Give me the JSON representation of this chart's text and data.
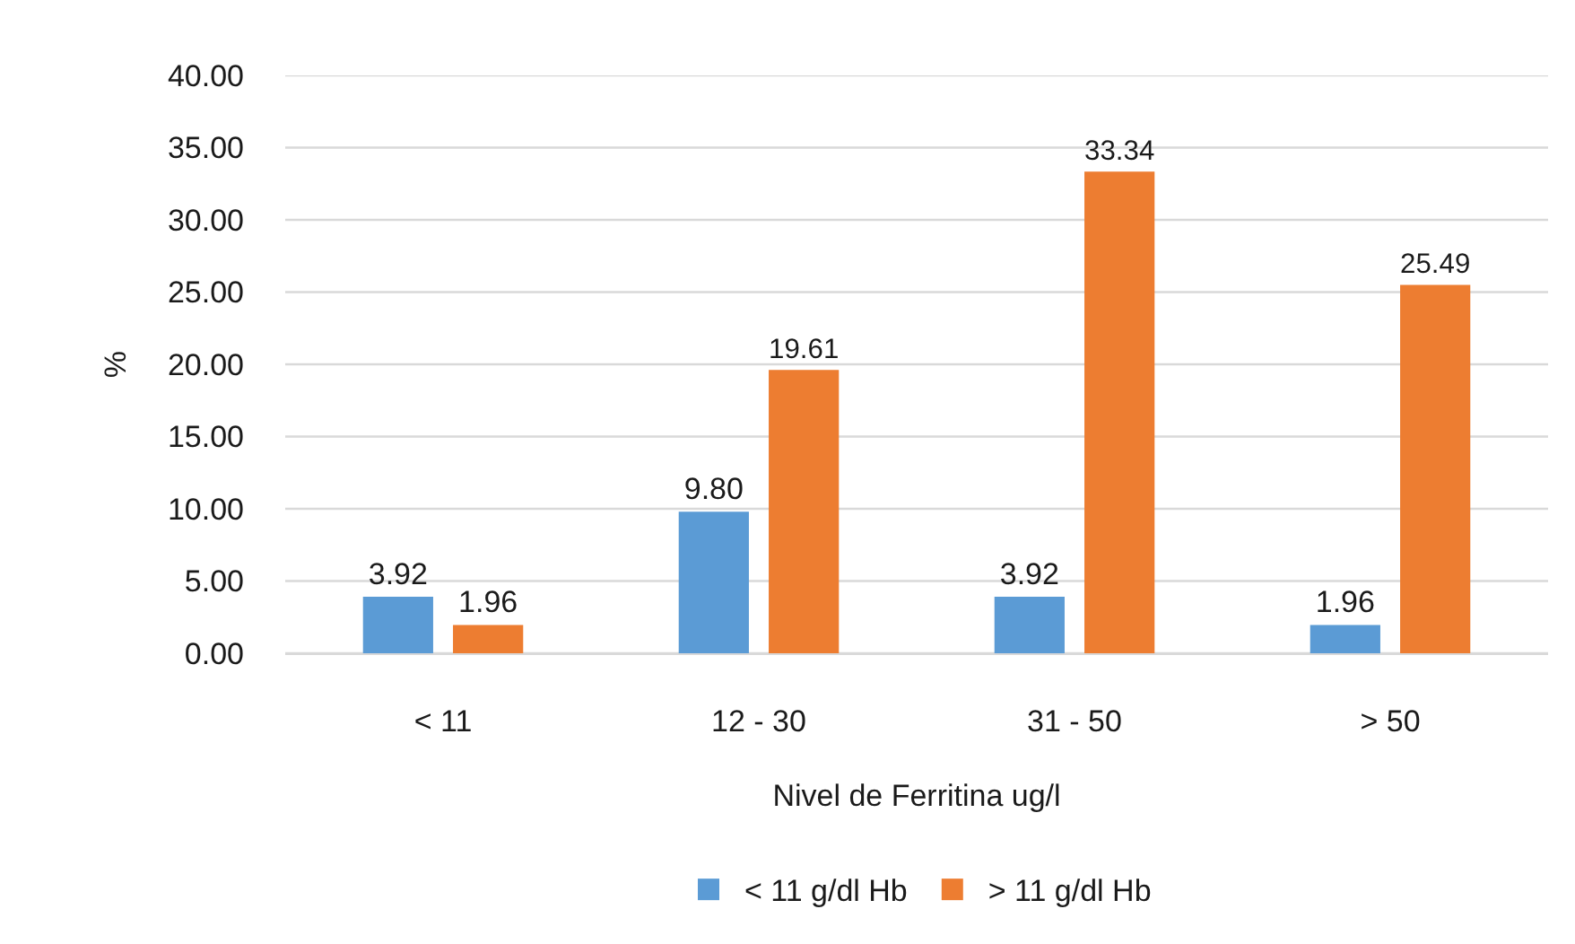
{
  "chart_data": {
    "type": "bar",
    "categories": [
      "< 11",
      "12 - 30",
      "31 - 50",
      "> 50"
    ],
    "xlabel": "Nivel de Ferritina ug/l",
    "ylabel": "%",
    "series": [
      {
        "name": "< 11 g/dl Hb",
        "color": "#5b9bd5",
        "values": [
          3.92,
          9.8,
          3.92,
          1.96
        ],
        "value_labels": [
          "3.92",
          "9.80",
          "3.92",
          "1.96"
        ]
      },
      {
        "name": "> 11 g/dl Hb",
        "color": "#ed7d31",
        "values": [
          1.96,
          19.61,
          33.34,
          25.49
        ],
        "value_labels": [
          "1.96",
          "19.61",
          "33.34",
          "25.49"
        ]
      }
    ],
    "ylim": [
      0,
      40
    ],
    "yticks": [
      {
        "value": 0,
        "label": "0.00"
      },
      {
        "value": 5,
        "label": "5.00"
      },
      {
        "value": 10,
        "label": "10.00"
      },
      {
        "value": 15,
        "label": "15.00"
      },
      {
        "value": 20,
        "label": "20.00"
      },
      {
        "value": 25,
        "label": "25.00"
      },
      {
        "value": 30,
        "label": "30.00"
      },
      {
        "value": 35,
        "label": "35.00"
      },
      {
        "value": 40,
        "label": "40.00"
      }
    ],
    "grid": "y",
    "legend": "bottom"
  }
}
